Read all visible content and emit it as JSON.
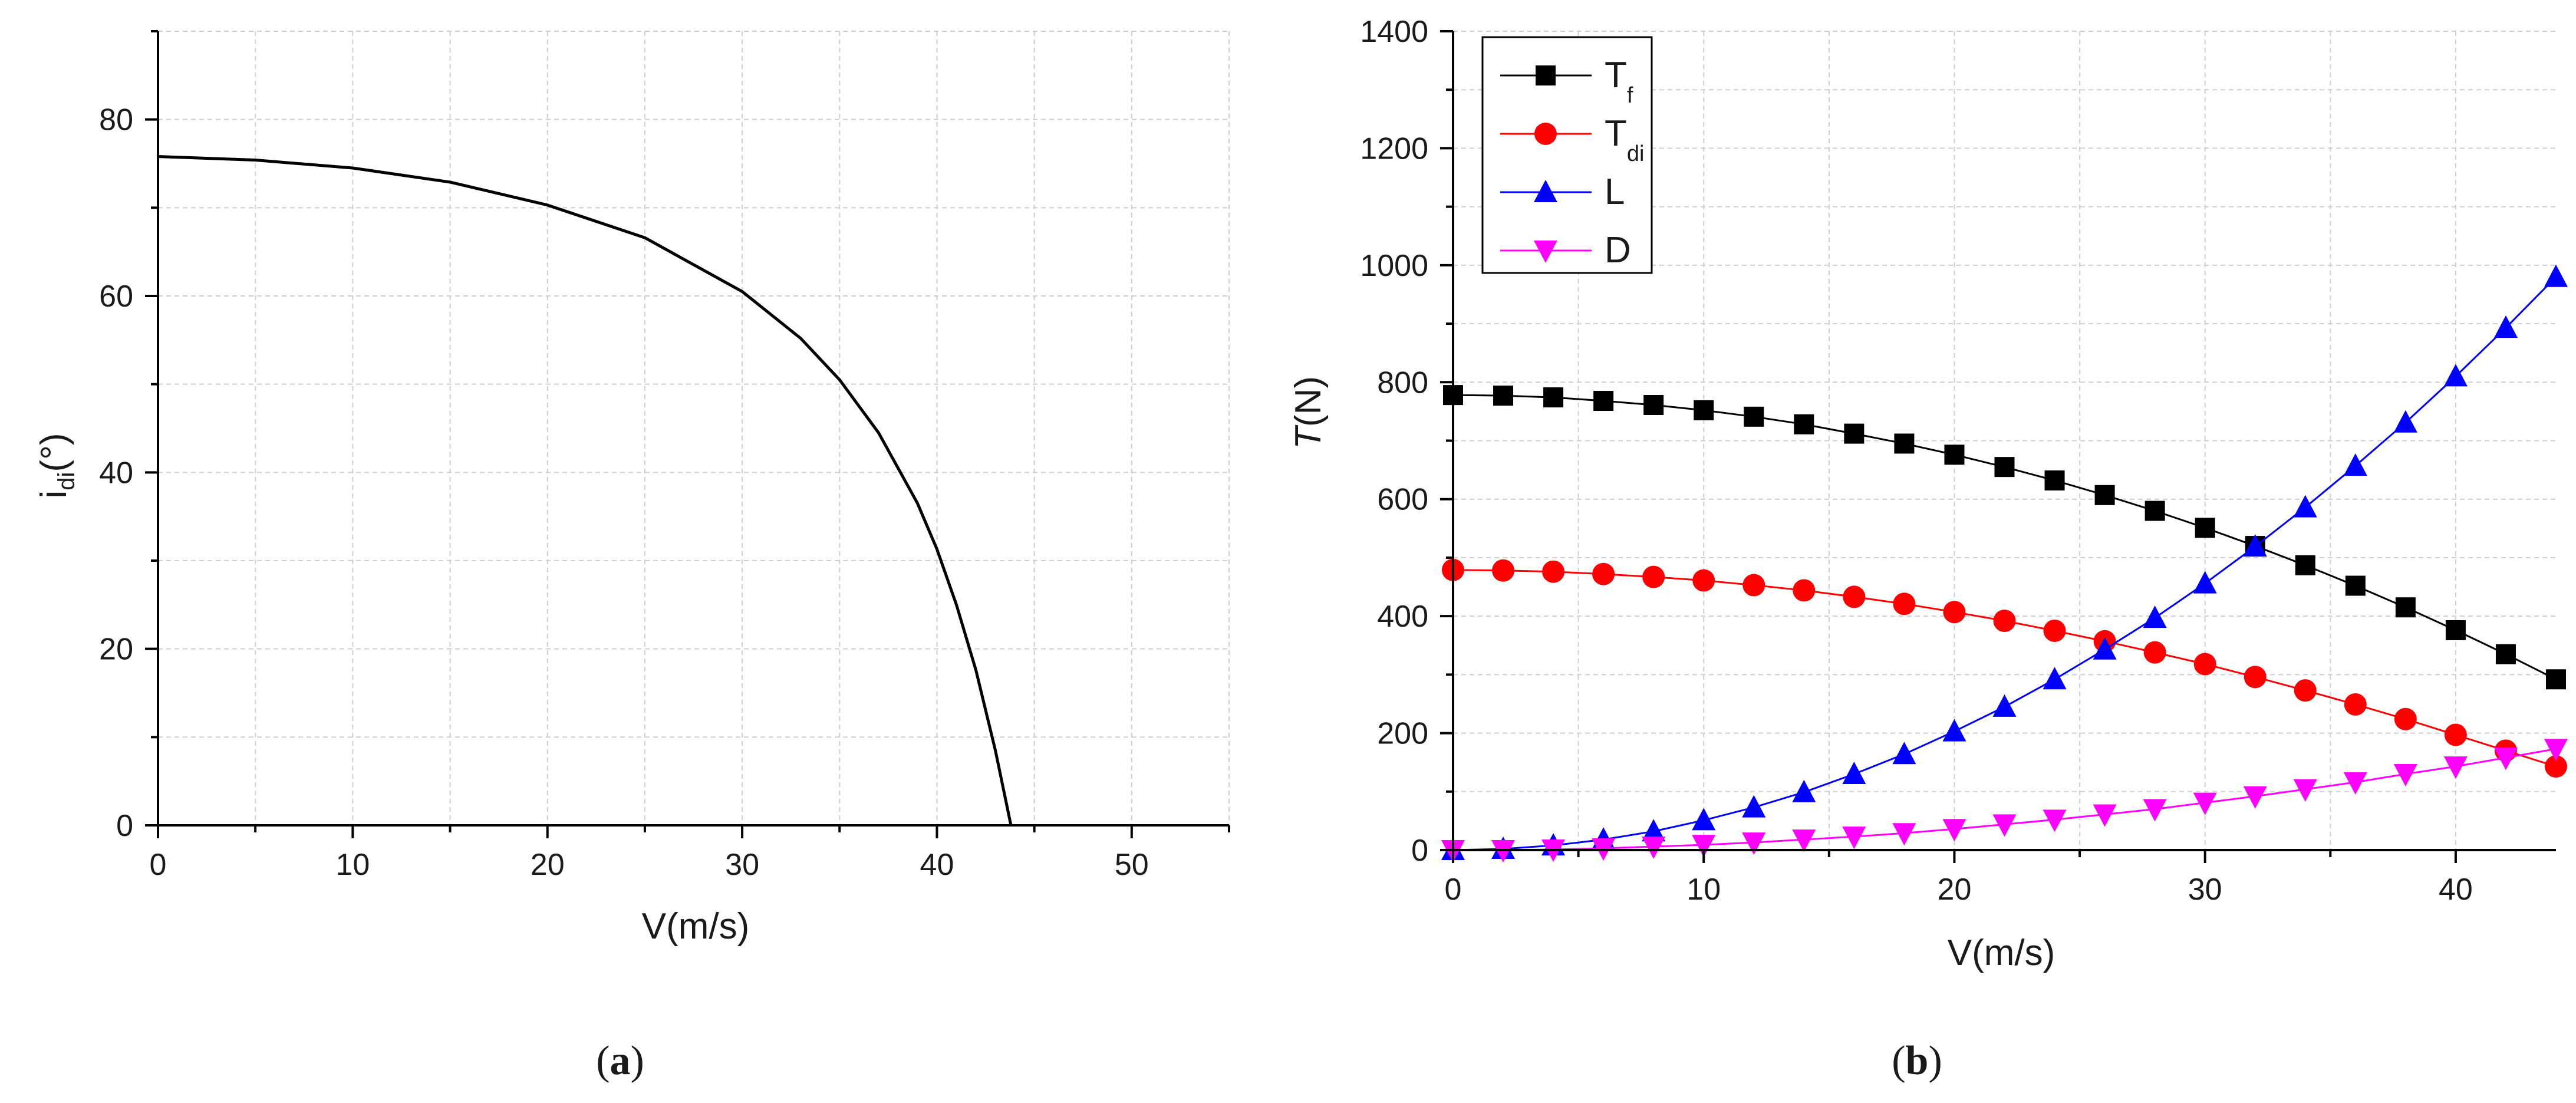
{
  "chart_data": [
    {
      "id": "a",
      "type": "line",
      "caption": {
        "open": "(",
        "letter": "a",
        "close": ")"
      },
      "xlabel": "V(m/s)",
      "ylabel": {
        "main": "i",
        "sub": "di",
        "unit": "(°)"
      },
      "xlim": [
        0,
        55
      ],
      "ylim": [
        0,
        90
      ],
      "xticks": [
        0,
        10,
        20,
        30,
        40,
        50
      ],
      "yticks": [
        0,
        20,
        40,
        60,
        80
      ],
      "grid": true,
      "series": [
        {
          "name": "i_di",
          "color": "#000000",
          "x": [
            0,
            5,
            10,
            15,
            20,
            25,
            30,
            33,
            35,
            37,
            39,
            40,
            41,
            42,
            43,
            43.8
          ],
          "y": [
            75.8,
            75.4,
            74.5,
            72.9,
            70.3,
            66.6,
            60.5,
            55.2,
            50.5,
            44.5,
            36.5,
            31.3,
            25.0,
            17.6,
            8.5,
            0
          ]
        }
      ]
    },
    {
      "id": "b",
      "type": "line",
      "caption": {
        "open": "(",
        "letter": "b",
        "close": ")"
      },
      "xlabel": "V(m/s)",
      "ylabel": {
        "main": "T",
        "unit": "(N)"
      },
      "xlim": [
        0,
        44
      ],
      "ylim": [
        0,
        1400
      ],
      "xticks": [
        0,
        10,
        20,
        30,
        40
      ],
      "yticks": [
        0,
        200,
        400,
        600,
        800,
        1000,
        1200,
        1400
      ],
      "grid": true,
      "legend_position": "top-left",
      "x": [
        0,
        2,
        4,
        6,
        8,
        10,
        12,
        14,
        16,
        18,
        20,
        22,
        24,
        26,
        28,
        30,
        32,
        34,
        36,
        38,
        40,
        42,
        44
      ],
      "series": [
        {
          "name": "Tf",
          "label_main": "T",
          "label_sub": "f",
          "color": "#000000",
          "marker": "square",
          "values": [
            778,
            777,
            774,
            768,
            761,
            752,
            741,
            728,
            712,
            695,
            676,
            655,
            632,
            607,
            580,
            551,
            520,
            487,
            452,
            415,
            376,
            335,
            292
          ]
        },
        {
          "name": "Tdi",
          "label_main": "T",
          "label_sub": "di",
          "color": "#ff0000",
          "marker": "circle",
          "values": [
            479,
            478,
            476,
            472,
            467,
            461,
            453,
            444,
            433,
            421,
            407,
            392,
            375,
            357,
            338,
            318,
            296,
            273,
            249,
            224,
            197,
            170,
            143
          ]
        },
        {
          "name": "L",
          "label_main": "L",
          "label_sub": "",
          "color": "#0000ff",
          "marker": "triangle-up",
          "values": [
            0,
            2,
            8,
            18,
            32,
            51,
            73,
            99,
            130,
            164,
            203,
            245,
            292,
            343,
            397,
            456,
            519,
            586,
            657,
            731,
            810,
            893,
            980
          ]
        },
        {
          "name": "D",
          "label_main": "D",
          "label_sub": "",
          "color": "#ff00ff",
          "marker": "triangle-down",
          "values": [
            0,
            0,
            1,
            3,
            6,
            9,
            13,
            18,
            23,
            29,
            36,
            44,
            52,
            61,
            70,
            81,
            92,
            104,
            116,
            130,
            143,
            158,
            173
          ]
        }
      ]
    }
  ]
}
